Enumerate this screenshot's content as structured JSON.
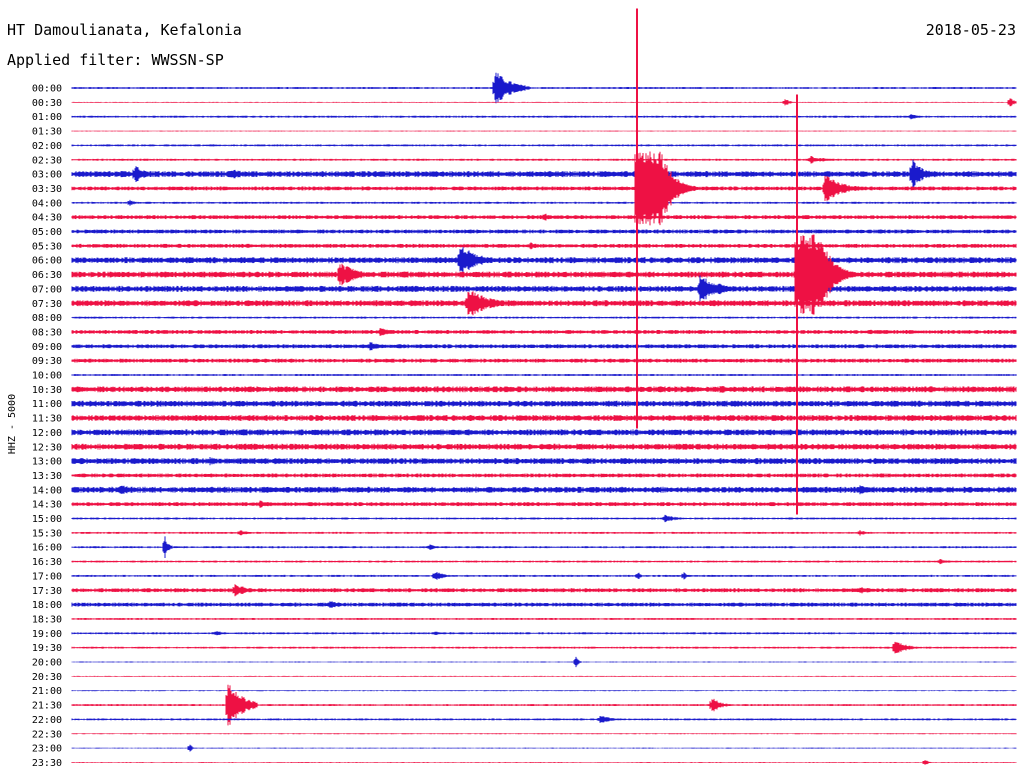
{
  "header": {
    "station": "HT Damoulianata, Kefalonia",
    "date": "2018-05-23",
    "filter": "Applied filter: WWSSN-SP"
  },
  "chart_data": {
    "type": "line",
    "channel_label": "HHZ - 5000",
    "colors": {
      "blue": "#1a1acc",
      "red": "#ee1144"
    },
    "series": [
      {
        "time": "00:00",
        "color": "blue",
        "level": 1,
        "events": [
          {
            "x": 495,
            "amp": 18,
            "len": 35
          }
        ]
      },
      {
        "time": "00:30",
        "color": "red",
        "level": 0.5,
        "events": [
          {
            "x": 785,
            "amp": 4,
            "len": 10
          },
          {
            "x": 1010,
            "amp": 5,
            "len": 10
          }
        ]
      },
      {
        "time": "01:00",
        "color": "blue",
        "level": 1,
        "events": [
          {
            "x": 910,
            "amp": 3,
            "len": 20
          }
        ]
      },
      {
        "time": "01:30",
        "color": "red",
        "level": 0.5,
        "events": []
      },
      {
        "time": "02:00",
        "color": "blue",
        "level": 1,
        "events": []
      },
      {
        "time": "02:30",
        "color": "red",
        "level": 1,
        "events": [
          {
            "x": 810,
            "amp": 4,
            "len": 35
          }
        ]
      },
      {
        "time": "03:00",
        "color": "blue",
        "level": 3,
        "events": [
          {
            "x": 135,
            "amp": 10,
            "len": 20
          },
          {
            "x": 230,
            "amp": 6,
            "len": 40
          },
          {
            "x": 912,
            "amp": 16,
            "len": 25
          }
        ]
      },
      {
        "time": "03:30",
        "color": "red",
        "level": 2,
        "events": [
          {
            "x": 825,
            "amp": 14,
            "len": 40
          }
        ]
      },
      {
        "time": "04:00",
        "color": "blue",
        "level": 1,
        "events": [
          {
            "x": 130,
            "amp": 4,
            "len": 10
          }
        ]
      },
      {
        "time": "04:30",
        "color": "red",
        "level": 2,
        "events": [
          {
            "x": 545,
            "amp": 5,
            "len": 10
          }
        ]
      },
      {
        "time": "05:00",
        "color": "blue",
        "level": 2,
        "events": []
      },
      {
        "time": "05:30",
        "color": "red",
        "level": 2,
        "events": [
          {
            "x": 530,
            "amp": 4,
            "len": 20
          }
        ]
      },
      {
        "time": "06:00",
        "color": "blue",
        "level": 3,
        "events": [
          {
            "x": 460,
            "amp": 16,
            "len": 40
          }
        ]
      },
      {
        "time": "06:30",
        "color": "red",
        "level": 3,
        "events": [
          {
            "x": 340,
            "amp": 14,
            "len": 35
          }
        ]
      },
      {
        "time": "07:00",
        "color": "blue",
        "level": 3,
        "events": [
          {
            "x": 700,
            "amp": 14,
            "len": 45
          }
        ]
      },
      {
        "time": "07:30",
        "color": "red",
        "level": 3,
        "events": [
          {
            "x": 468,
            "amp": 16,
            "len": 45
          }
        ]
      },
      {
        "time": "08:00",
        "color": "blue",
        "level": 1,
        "events": []
      },
      {
        "time": "08:30",
        "color": "red",
        "level": 2,
        "events": [
          {
            "x": 380,
            "amp": 4,
            "len": 40
          },
          {
            "x": 870,
            "amp": 3,
            "len": 25
          }
        ]
      },
      {
        "time": "09:00",
        "color": "blue",
        "level": 2,
        "events": [
          {
            "x": 370,
            "amp": 5,
            "len": 25
          }
        ]
      },
      {
        "time": "09:30",
        "color": "red",
        "level": 2,
        "events": []
      },
      {
        "time": "10:00",
        "color": "blue",
        "level": 1,
        "events": []
      },
      {
        "time": "10:30",
        "color": "red",
        "level": 3,
        "events": [
          {
            "x": 720,
            "amp": 4,
            "len": 40
          }
        ]
      },
      {
        "time": "11:00",
        "color": "blue",
        "level": 3,
        "events": []
      },
      {
        "time": "11:30",
        "color": "red",
        "level": 3,
        "events": []
      },
      {
        "time": "12:00",
        "color": "blue",
        "level": 3,
        "events": []
      },
      {
        "time": "12:30",
        "color": "red",
        "level": 3,
        "events": []
      },
      {
        "time": "13:00",
        "color": "blue",
        "level": 3,
        "events": [
          {
            "x": 210,
            "amp": 5,
            "len": 20
          }
        ]
      },
      {
        "time": "13:30",
        "color": "red",
        "level": 2,
        "events": []
      },
      {
        "time": "14:00",
        "color": "blue",
        "level": 3,
        "events": [
          {
            "x": 120,
            "amp": 6,
            "len": 30
          },
          {
            "x": 860,
            "amp": 6,
            "len": 30
          }
        ]
      },
      {
        "time": "14:30",
        "color": "red",
        "level": 2,
        "events": [
          {
            "x": 260,
            "amp": 4,
            "len": 30
          }
        ]
      },
      {
        "time": "15:00",
        "color": "blue",
        "level": 1,
        "events": [
          {
            "x": 665,
            "amp": 4,
            "len": 25
          }
        ]
      },
      {
        "time": "15:30",
        "color": "red",
        "level": 1,
        "events": [
          {
            "x": 240,
            "amp": 3,
            "len": 20
          },
          {
            "x": 860,
            "amp": 3,
            "len": 15
          }
        ]
      },
      {
        "time": "16:00",
        "color": "blue",
        "level": 1,
        "events": [
          {
            "x": 165,
            "amp": 12,
            "len": 8
          },
          {
            "x": 430,
            "amp": 3,
            "len": 15
          }
        ]
      },
      {
        "time": "16:30",
        "color": "red",
        "level": 1,
        "events": [
          {
            "x": 940,
            "amp": 3,
            "len": 20
          }
        ]
      },
      {
        "time": "17:00",
        "color": "blue",
        "level": 1,
        "events": [
          {
            "x": 435,
            "amp": 5,
            "len": 20
          },
          {
            "x": 638,
            "amp": 5,
            "len": 6
          },
          {
            "x": 684,
            "amp": 5,
            "len": 6
          }
        ]
      },
      {
        "time": "17:30",
        "color": "red",
        "level": 2,
        "events": [
          {
            "x": 235,
            "amp": 8,
            "len": 25
          },
          {
            "x": 860,
            "amp": 4,
            "len": 30
          }
        ]
      },
      {
        "time": "18:00",
        "color": "blue",
        "level": 2,
        "events": [
          {
            "x": 330,
            "amp": 5,
            "len": 25
          }
        ]
      },
      {
        "time": "18:30",
        "color": "red",
        "level": 1,
        "events": []
      },
      {
        "time": "19:00",
        "color": "blue",
        "level": 1,
        "events": [
          {
            "x": 215,
            "amp": 3,
            "len": 20
          },
          {
            "x": 435,
            "amp": 3,
            "len": 10
          }
        ]
      },
      {
        "time": "19:30",
        "color": "red",
        "level": 1,
        "events": [
          {
            "x": 895,
            "amp": 8,
            "len": 25
          }
        ]
      },
      {
        "time": "20:00",
        "color": "blue",
        "level": 0.5,
        "events": [
          {
            "x": 576,
            "amp": 7,
            "len": 6
          }
        ]
      },
      {
        "time": "20:30",
        "color": "red",
        "level": 0.5,
        "events": []
      },
      {
        "time": "21:00",
        "color": "blue",
        "level": 0.5,
        "events": []
      },
      {
        "time": "21:30",
        "color": "red",
        "level": 1,
        "events": [
          {
            "x": 228,
            "amp": 26,
            "len": 30
          },
          {
            "x": 712,
            "amp": 8,
            "len": 20
          }
        ]
      },
      {
        "time": "22:00",
        "color": "blue",
        "level": 1,
        "events": [
          {
            "x": 600,
            "amp": 4,
            "len": 30
          }
        ]
      },
      {
        "time": "22:30",
        "color": "red",
        "level": 0.5,
        "events": []
      },
      {
        "time": "23:00",
        "color": "blue",
        "level": 0.5,
        "events": [
          {
            "x": 190,
            "amp": 4,
            "len": 6
          }
        ]
      },
      {
        "time": "23:30",
        "color": "red",
        "level": 0.5,
        "events": [
          {
            "x": 925,
            "amp": 4,
            "len": 6
          }
        ]
      }
    ],
    "large_events": [
      {
        "x": 637,
        "start_row": 7,
        "amp": 300,
        "color": "red",
        "decay": 40
      },
      {
        "x": 797,
        "start_row": 13,
        "amp": 300,
        "color": "red",
        "decay": 50
      }
    ]
  }
}
